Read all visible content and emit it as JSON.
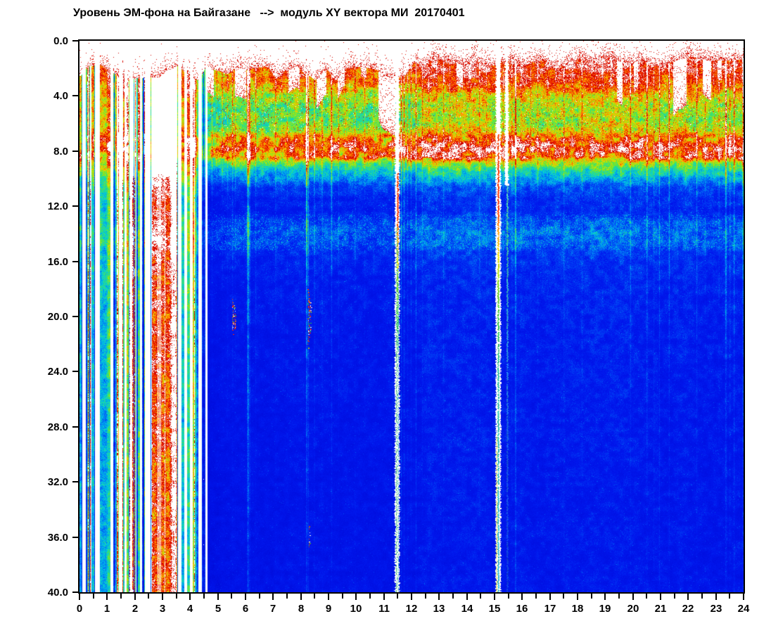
{
  "title": "Уровень ЭМ-фона на Байгазане   -->  модуль XY вектора МИ  20170401",
  "station": "Байгазан",
  "channel": "модуль XY вектора МИ",
  "date": "20170401",
  "chart_data": {
    "type": "heatmap",
    "subtype": "spectrogram",
    "title": "Уровень ЭМ-фона на Байгазане   -->  модуль XY вектора МИ  20170401",
    "x_axis": {
      "range": [
        0,
        24
      ],
      "unit": "hour of day",
      "tick_step": 1,
      "minor_tick_step": 0.5,
      "tick_labels": [
        "0",
        "1",
        "2",
        "3",
        "4",
        "5",
        "6",
        "7",
        "8",
        "9",
        "10",
        "11",
        "12",
        "13",
        "14",
        "15",
        "16",
        "17",
        "18",
        "19",
        "20",
        "21",
        "22",
        "23",
        "24"
      ]
    },
    "y_axis": {
      "range": [
        0,
        40
      ],
      "unit": "Hz",
      "direction": "down",
      "tick_step": 4,
      "tick_labels": [
        "0.0",
        "4.0",
        "8.0",
        "12.0",
        "16.0",
        "20.0",
        "24.0",
        "28.0",
        "32.0",
        "36.0",
        "40.0"
      ]
    },
    "legend": "none (implicit jet palette: blue=low, green=mid, red=high, white=off-scale/no data)",
    "grid": false,
    "seed": 20170401,
    "colormap": {
      "name": "jet-with-white-extremes",
      "white_below": 0.05,
      "white_above": 1.2,
      "stops": [
        [
          0.0,
          "#0000a8"
        ],
        [
          0.08,
          "#000ee0"
        ],
        [
          0.15,
          "#0018ee"
        ],
        [
          0.22,
          "#0040f4"
        ],
        [
          0.3,
          "#0090f4"
        ],
        [
          0.37,
          "#00c8e0"
        ],
        [
          0.44,
          "#20dca0"
        ],
        [
          0.52,
          "#50e448"
        ],
        [
          0.6,
          "#9ce810"
        ],
        [
          0.68,
          "#d8e000"
        ],
        [
          0.75,
          "#f8c000"
        ],
        [
          0.82,
          "#ff9000"
        ],
        [
          0.89,
          "#ff5000"
        ],
        [
          0.97,
          "#f02000"
        ],
        [
          1.08,
          "#d80800"
        ],
        [
          1.2,
          "#c00000"
        ]
      ]
    },
    "frequency_profile": [
      [
        0.0,
        1.16
      ],
      [
        1.2,
        1.12
      ],
      [
        2.0,
        1.06
      ],
      [
        2.6,
        1.0
      ],
      [
        3.2,
        0.9
      ],
      [
        3.8,
        0.72
      ],
      [
        4.5,
        0.62
      ],
      [
        5.2,
        0.57
      ],
      [
        6.0,
        0.6
      ],
      [
        6.6,
        0.7
      ],
      [
        7.0,
        0.88
      ],
      [
        7.4,
        1.02
      ],
      [
        7.9,
        1.06
      ],
      [
        8.4,
        0.96
      ],
      [
        8.8,
        0.62
      ],
      [
        9.3,
        0.45
      ],
      [
        9.9,
        0.33
      ],
      [
        10.6,
        0.22
      ],
      [
        11.5,
        0.175
      ],
      [
        12.4,
        0.18
      ],
      [
        13.0,
        0.22
      ],
      [
        13.8,
        0.26
      ],
      [
        14.6,
        0.235
      ],
      [
        15.4,
        0.2
      ],
      [
        16.5,
        0.175
      ],
      [
        18.0,
        0.165
      ],
      [
        20.0,
        0.158
      ],
      [
        23.0,
        0.15
      ],
      [
        27.0,
        0.143
      ],
      [
        32.0,
        0.138
      ],
      [
        36.0,
        0.135
      ],
      [
        40.0,
        0.132
      ]
    ],
    "time_envelope": [
      [
        4.62,
        5.6,
        0.74,
        0.9
      ],
      [
        5.6,
        12.2,
        0.9,
        0.93
      ],
      [
        12.2,
        12.6,
        0.93,
        1.04
      ],
      [
        12.6,
        24.0,
        1.04,
        1.01
      ]
    ],
    "boundary": {
      "morning_top_hz": 2.3,
      "afternoon_top_hz": 1.5,
      "transition": [
        11.8,
        12.6
      ]
    },
    "bursts": [
      [
        0.0,
        0.1,
        1.2
      ],
      [
        0.22,
        0.4,
        1.3
      ],
      [
        0.42,
        0.55,
        0.95
      ],
      [
        0.72,
        0.92,
        1.35
      ],
      [
        0.92,
        1.1,
        1.15
      ],
      [
        1.22,
        1.42,
        1.3
      ],
      [
        1.55,
        1.62,
        0.8
      ],
      [
        1.7,
        1.82,
        1.1
      ],
      [
        1.9,
        2.02,
        1.25
      ],
      [
        2.05,
        2.18,
        1.0
      ],
      [
        2.25,
        2.34,
        0.8
      ],
      [
        3.68,
        3.78,
        1.0
      ],
      [
        3.88,
        3.98,
        0.9
      ],
      [
        4.08,
        4.28,
        1.15
      ],
      [
        4.42,
        4.55,
        1.0
      ]
    ],
    "mega_event": {
      "t0": 2.56,
      "t1": 3.54,
      "amp_base": 2.6,
      "amp_var": 2.6,
      "description": "broadband saturated event around 03:00, white core 0-14 Hz, red/yellow/green columns to 40 Hz"
    },
    "streaks": [
      [
        4.78,
        0.5,
        0.015,
        14
      ],
      [
        4.95,
        0.3,
        0.012,
        10
      ],
      [
        5.15,
        0.45,
        0.015,
        12
      ],
      [
        5.34,
        0.35,
        0.012,
        16
      ],
      [
        5.52,
        0.5,
        0.015,
        20
      ],
      [
        5.62,
        0.35,
        0.012,
        18
      ],
      [
        6.08,
        1.6,
        0.02,
        60
      ],
      [
        6.14,
        0.8,
        0.012,
        60
      ],
      [
        6.36,
        0.5,
        0.012,
        25
      ],
      [
        6.6,
        0.3,
        0.012,
        12
      ],
      [
        7.08,
        0.45,
        0.015,
        18
      ],
      [
        7.3,
        0.3,
        0.01,
        12
      ],
      [
        7.5,
        0.35,
        0.012,
        15
      ],
      [
        8.2,
        2.2,
        0.016,
        28
      ],
      [
        8.26,
        1.0,
        0.01,
        40
      ],
      [
        8.48,
        0.7,
        0.012,
        30
      ],
      [
        8.76,
        0.5,
        0.012,
        25
      ],
      [
        9.1,
        0.8,
        0.015,
        30
      ],
      [
        9.35,
        0.5,
        0.012,
        20
      ],
      [
        9.6,
        0.35,
        0.01,
        15
      ],
      [
        9.95,
        0.5,
        0.012,
        22
      ],
      [
        10.3,
        0.4,
        0.012,
        18
      ],
      [
        10.62,
        0.35,
        0.01,
        15
      ],
      [
        10.85,
        0.3,
        0.01,
        12
      ],
      [
        11.3,
        0.4,
        0.01,
        30
      ],
      [
        11.62,
        0.9,
        0.012,
        40
      ],
      [
        11.72,
        0.6,
        0.012,
        50
      ],
      [
        11.85,
        0.45,
        0.01,
        30
      ],
      [
        11.97,
        0.5,
        0.012,
        35
      ],
      [
        12.15,
        0.7,
        0.012,
        50
      ],
      [
        12.38,
        0.4,
        0.012,
        25
      ],
      [
        12.62,
        0.35,
        0.01,
        18
      ],
      [
        12.9,
        0.4,
        0.01,
        20
      ],
      [
        13.15,
        0.55,
        0.012,
        25
      ],
      [
        13.38,
        0.4,
        0.01,
        20
      ],
      [
        13.62,
        0.3,
        0.01,
        15
      ],
      [
        14.1,
        0.3,
        0.01,
        15
      ],
      [
        14.45,
        0.5,
        0.012,
        22
      ],
      [
        14.7,
        0.35,
        0.01,
        15
      ],
      [
        15.3,
        0.4,
        0.01,
        25
      ],
      [
        15.62,
        0.5,
        0.01,
        30
      ],
      [
        15.75,
        1.1,
        0.014,
        70
      ],
      [
        15.95,
        0.4,
        0.01,
        20
      ],
      [
        16.3,
        0.35,
        0.01,
        15
      ],
      [
        16.55,
        0.45,
        0.012,
        20
      ],
      [
        16.9,
        0.3,
        0.01,
        12
      ],
      [
        17.2,
        0.3,
        0.01,
        14
      ],
      [
        17.5,
        0.55,
        0.012,
        25
      ],
      [
        17.8,
        0.3,
        0.01,
        12
      ],
      [
        18.15,
        0.5,
        0.012,
        22
      ],
      [
        18.5,
        0.3,
        0.01,
        12
      ],
      [
        18.9,
        0.35,
        0.01,
        14
      ],
      [
        19.2,
        0.4,
        0.01,
        16
      ],
      [
        19.55,
        0.3,
        0.01,
        12
      ],
      [
        19.9,
        0.9,
        0.014,
        20
      ],
      [
        20.2,
        0.35,
        0.01,
        14
      ],
      [
        20.5,
        1.0,
        0.014,
        22
      ],
      [
        20.75,
        0.4,
        0.01,
        35
      ],
      [
        20.95,
        0.6,
        0.012,
        40
      ],
      [
        21.3,
        0.9,
        0.014,
        25
      ],
      [
        21.6,
        0.4,
        0.01,
        16
      ],
      [
        21.9,
        0.35,
        0.01,
        14
      ],
      [
        22.3,
        0.8,
        0.013,
        22
      ],
      [
        22.6,
        0.4,
        0.01,
        15
      ],
      [
        22.9,
        0.3,
        0.01,
        12
      ],
      [
        23.1,
        0.5,
        0.012,
        18
      ],
      [
        23.35,
        1.5,
        0.016,
        26
      ],
      [
        23.5,
        0.6,
        0.012,
        30
      ],
      [
        23.65,
        0.8,
        0.013,
        35
      ],
      [
        23.97,
        1.2,
        0.013,
        25
      ],
      [
        3.07,
        3.5,
        0.006,
        200
      ]
    ],
    "top_gaps": [
      [
        4.62,
        4.85,
        4.5
      ],
      [
        5.6,
        6.02,
        4.6
      ],
      [
        7.55,
        7.95,
        4.0
      ],
      [
        8.55,
        8.92,
        4.2
      ],
      [
        9.32,
        9.56,
        3.6
      ],
      [
        10.15,
        10.35,
        3.0
      ],
      [
        10.78,
        11.4,
        6.0
      ],
      [
        13.62,
        13.85,
        3.0
      ],
      [
        19.42,
        19.62,
        4.6
      ],
      [
        20.02,
        20.18,
        3.6
      ],
      [
        21.45,
        21.92,
        5.4
      ],
      [
        22.52,
        22.82,
        4.4
      ],
      [
        23.05,
        23.2,
        3.0
      ]
    ],
    "white_columns": [
      [
        11.405,
        11.56,
        0,
        40
      ],
      [
        15.045,
        15.225,
        0,
        40
      ],
      [
        15.375,
        15.505,
        0,
        10.5
      ]
    ],
    "event_cores": [
      {
        "t": 11.478,
        "stops": [
          [
            9.6,
            "#ff3800"
          ],
          [
            12.8,
            "#ff3000"
          ],
          [
            14.4,
            "#ff9800"
          ],
          [
            16.2,
            "#f0e000"
          ],
          [
            18.0,
            "#70d810"
          ],
          [
            21.0,
            "#28c060"
          ],
          [
            23.5,
            "#ffffff"
          ],
          [
            40,
            "#ffffff"
          ]
        ]
      },
      {
        "t": 15.115,
        "stops": [
          [
            6.8,
            "#ff4000"
          ],
          [
            12.2,
            "#ff2800"
          ],
          [
            13.8,
            "#ff9800"
          ],
          [
            15.6,
            "#f0e000"
          ],
          [
            17.6,
            "#80d818"
          ],
          [
            20.5,
            "#30c048"
          ],
          [
            24.0,
            "#28c0a0"
          ],
          [
            40,
            "#38b8d8"
          ]
        ]
      },
      {
        "t": 15.44,
        "stops": [
          [
            10.5,
            "#58d0c8"
          ],
          [
            14.0,
            "#40c890"
          ],
          [
            18.0,
            "#38b0c8"
          ],
          [
            24.0,
            "#2888e0"
          ],
          [
            30.0,
            "#1858e0"
          ],
          [
            40,
            "#1040dc"
          ]
        ]
      }
    ],
    "event_flank_lines": [
      [
        11.447,
        13.5,
        40,
        "#38b868",
        0.75
      ],
      [
        11.51,
        15.0,
        40,
        "#40b8d0",
        0.7
      ],
      [
        15.068,
        28.5,
        40,
        "#ddd020",
        0.8
      ]
    ],
    "dot_blobs": [
      [
        5.53,
        18.6,
        21.4
      ],
      [
        5.6,
        19.2,
        21.0
      ],
      [
        8.27,
        18.0,
        22.4
      ],
      [
        8.33,
        19.0,
        21.2
      ],
      [
        8.3,
        35.2,
        36.8
      ]
    ],
    "observations": [
      "continuous diurnal EM background from ~04:40 to 24:00; intermittent bursts with white data gaps from 00:00 to ~04:30",
      "saturated white band above ~1.5-2.3 Hz at top of plot with sparse red speckle boundary",
      "strong red band (Schumann-resonance-like) at ~7-8.5 Hz with white saturated cores",
      "green activity zone ~3-6.5 Hz, denser after 12:00",
      "secondary light-blue/cyan speckle band at ~13-15 Hz",
      "deep blue quiet background from ~10 Hz to 40 Hz with narrow cyan/green interference streaks",
      "major broadband saturated event near 03:00; full-height white dropout columns with red cores near 11:28 and 15:06"
    ]
  }
}
